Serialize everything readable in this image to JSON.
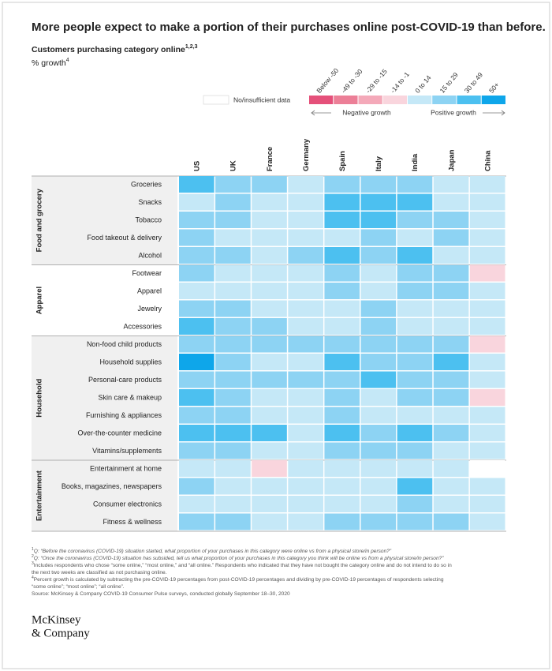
{
  "chart_data": {
    "type": "heatmap",
    "title": "More people expect to make a portion of their purchases online post-COVID-19 than before.",
    "subtitle": "Customers purchasing category online",
    "subtitle_note": "1,2,3",
    "unit": "% growth",
    "unit_note": "4",
    "columns": [
      "US",
      "UK",
      "France",
      "Germany",
      "Spain",
      "Italy",
      "India",
      "Japan",
      "China"
    ],
    "groups": [
      {
        "name": "Food and grocery",
        "categories": [
          "Groceries",
          "Snacks",
          "Tobacco",
          "Food takeout & delivery",
          "Alcohol"
        ]
      },
      {
        "name": "Apparel",
        "categories": [
          "Footwear",
          "Apparel",
          "Jewelry",
          "Accessories"
        ]
      },
      {
        "name": "Household",
        "categories": [
          "Non-food child products",
          "Household supplies",
          "Personal-care products",
          "Skin care & makeup",
          "Furnishing & appliances",
          "Over-the-counter medicine",
          "Vitamins/supplements"
        ]
      },
      {
        "name": "Entertainment",
        "categories": [
          "Entertainment at home",
          "Books, magazines, newspapers",
          "Consumer electronics",
          "Fitness & wellness"
        ]
      }
    ],
    "values": [
      [
        40,
        22,
        22,
        7,
        22,
        22,
        22,
        7,
        7
      ],
      [
        7,
        22,
        7,
        7,
        40,
        40,
        40,
        7,
        7
      ],
      [
        22,
        22,
        7,
        7,
        40,
        40,
        22,
        22,
        7
      ],
      [
        22,
        7,
        7,
        7,
        7,
        22,
        7,
        22,
        7
      ],
      [
        22,
        22,
        7,
        22,
        40,
        22,
        40,
        7,
        7
      ],
      [
        22,
        7,
        7,
        7,
        22,
        7,
        22,
        22,
        -7
      ],
      [
        7,
        7,
        7,
        7,
        22,
        7,
        22,
        22,
        7
      ],
      [
        22,
        22,
        7,
        7,
        7,
        22,
        7,
        7,
        7
      ],
      [
        40,
        22,
        22,
        7,
        7,
        22,
        7,
        7,
        7
      ],
      [
        22,
        22,
        22,
        22,
        22,
        22,
        22,
        22,
        -7
      ],
      [
        60,
        22,
        7,
        7,
        40,
        22,
        22,
        40,
        7
      ],
      [
        22,
        22,
        22,
        22,
        22,
        40,
        22,
        22,
        7
      ],
      [
        40,
        22,
        7,
        7,
        22,
        7,
        22,
        22,
        -7
      ],
      [
        22,
        22,
        7,
        7,
        22,
        7,
        7,
        7,
        7
      ],
      [
        40,
        40,
        40,
        7,
        40,
        22,
        40,
        22,
        7
      ],
      [
        22,
        22,
        7,
        7,
        22,
        22,
        22,
        7,
        7
      ],
      [
        7,
        7,
        -7,
        7,
        7,
        7,
        7,
        7,
        null
      ],
      [
        22,
        7,
        7,
        7,
        7,
        7,
        40,
        7,
        7
      ],
      [
        7,
        7,
        7,
        7,
        7,
        7,
        22,
        7,
        7
      ],
      [
        22,
        22,
        7,
        7,
        22,
        22,
        22,
        22,
        7
      ]
    ],
    "legend": {
      "no_data_label": "No/insufficient data",
      "no_data_color": "#ffffff",
      "negative_label": "Negative growth",
      "positive_label": "Positive growth",
      "bins": [
        {
          "label": "Below -50",
          "color": "#e5507a",
          "min": -1000
        },
        {
          "label": "-49 to -30",
          "color": "#ec7f97",
          "min": -49
        },
        {
          "label": "-29 to -15",
          "color": "#f4a9b9",
          "min": -29
        },
        {
          "label": "-14 to -1",
          "color": "#f9d5dd",
          "min": -14
        },
        {
          "label": "0 to 14",
          "color": "#c5e8f7",
          "min": 0
        },
        {
          "label": "15 to 29",
          "color": "#8dd3f3",
          "min": 15
        },
        {
          "label": "30 to 49",
          "color": "#4cc0f0",
          "min": 30
        },
        {
          "label": "50+",
          "color": "#0ea6ea",
          "min": 50
        }
      ]
    },
    "footnotes": [
      {
        "marker": "1",
        "lines": [
          "Q: “Before the coronavirus (COVID-19) situation started, what proportion of your purchases in this category were online vs from a physical store/in person?”"
        ]
      },
      {
        "marker": "2",
        "lines": [
          "Q: “Once the coronavirus (COVID-19) situation has subsided, tell us what proportion of your purchases in this category you think will be online vs from a physical store/in person?”"
        ]
      },
      {
        "marker": "3",
        "lines": [
          "Includes respondents who chose “some online,” “most online,” and “all online.” Respondents who indicated that they have not bought the category online and do not intend to do so in",
          "the next two weeks are classified as not purchasing online."
        ]
      },
      {
        "marker": "4",
        "lines": [
          "Percent growth is calculated by subtracting the pre-COVID-19 percentages from post-COVID-19 percentages and dividing by pre-COVID-19 percentages of respondents selecting",
          "“some online”; “most online”; “all online”."
        ]
      }
    ],
    "source": "Source: McKinsey & Company COVID-19 Consumer Pulse surveys, conducted globally September 18–30, 2020",
    "logo": [
      "McKinsey",
      "& Company"
    ]
  }
}
